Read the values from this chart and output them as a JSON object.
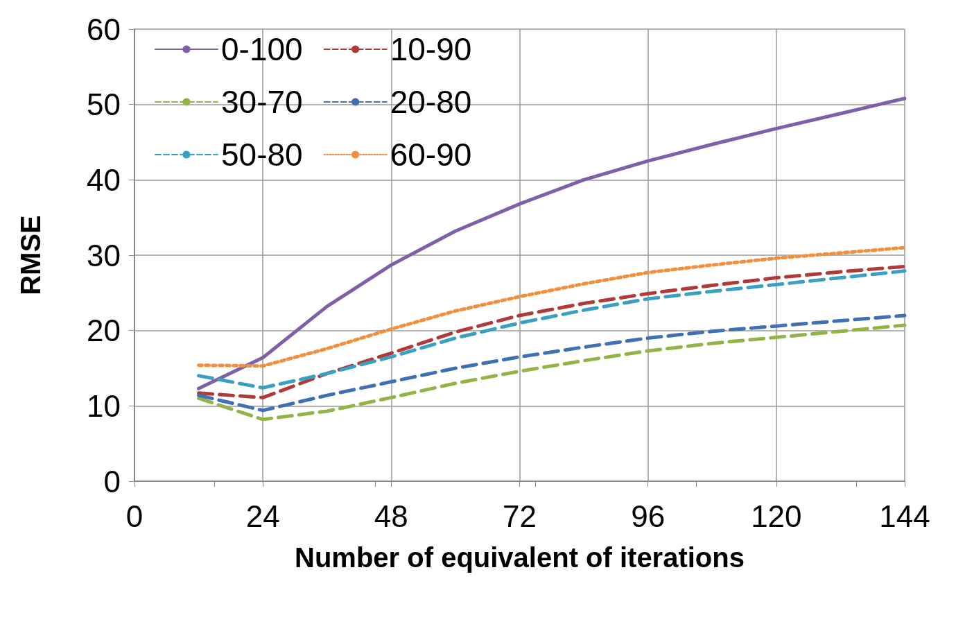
{
  "chart_data": {
    "type": "line",
    "xlabel": "Number of equivalent of iterations",
    "ylabel": "RMSE",
    "x": [
      12,
      24,
      36,
      48,
      60,
      72,
      84,
      96,
      108,
      120,
      132,
      144
    ],
    "series": [
      {
        "name": "0-100",
        "color": "#7f5fa8",
        "line_style": "solid",
        "values": [
          12.3,
          16.4,
          23.2,
          28.7,
          33.2,
          36.8,
          40.0,
          42.5,
          44.7,
          46.8,
          48.8,
          50.8
        ]
      },
      {
        "name": "10-90",
        "color": "#b03a38",
        "line_style": "dashed",
        "values": [
          11.7,
          11.1,
          14.3,
          17.0,
          19.8,
          22.0,
          23.6,
          24.9,
          26.0,
          27.0,
          27.8,
          28.5
        ]
      },
      {
        "name": "30-70",
        "color": "#93b347",
        "line_style": "dashed",
        "values": [
          11.0,
          8.2,
          9.3,
          11.1,
          13.0,
          14.6,
          16.0,
          17.3,
          18.3,
          19.1,
          19.9,
          20.7
        ]
      },
      {
        "name": "20-80",
        "color": "#3f6fb4",
        "line_style": "dashed",
        "values": [
          11.4,
          9.4,
          11.4,
          13.2,
          15.0,
          16.5,
          17.8,
          19.0,
          19.9,
          20.6,
          21.3,
          22.0
        ]
      },
      {
        "name": "50-80",
        "color": "#3a9fc1",
        "line_style": "dashed",
        "values": [
          14.0,
          12.4,
          14.3,
          16.5,
          19.0,
          21.0,
          22.7,
          24.2,
          25.2,
          26.1,
          27.0,
          27.9
        ]
      },
      {
        "name": "60-90",
        "color": "#f0903f",
        "line_style": "dotted",
        "values": [
          15.4,
          15.3,
          17.6,
          20.2,
          22.6,
          24.5,
          26.2,
          27.7,
          28.7,
          29.6,
          30.3,
          31.0
        ]
      }
    ],
    "xlim": [
      0,
      144
    ],
    "xticks": [
      0,
      24,
      48,
      72,
      96,
      120,
      144
    ],
    "ylim": [
      0,
      60
    ],
    "yticks": [
      0,
      10,
      20,
      30,
      40,
      50,
      60
    ],
    "grid": true,
    "legend": "top left",
    "marker": "none"
  }
}
